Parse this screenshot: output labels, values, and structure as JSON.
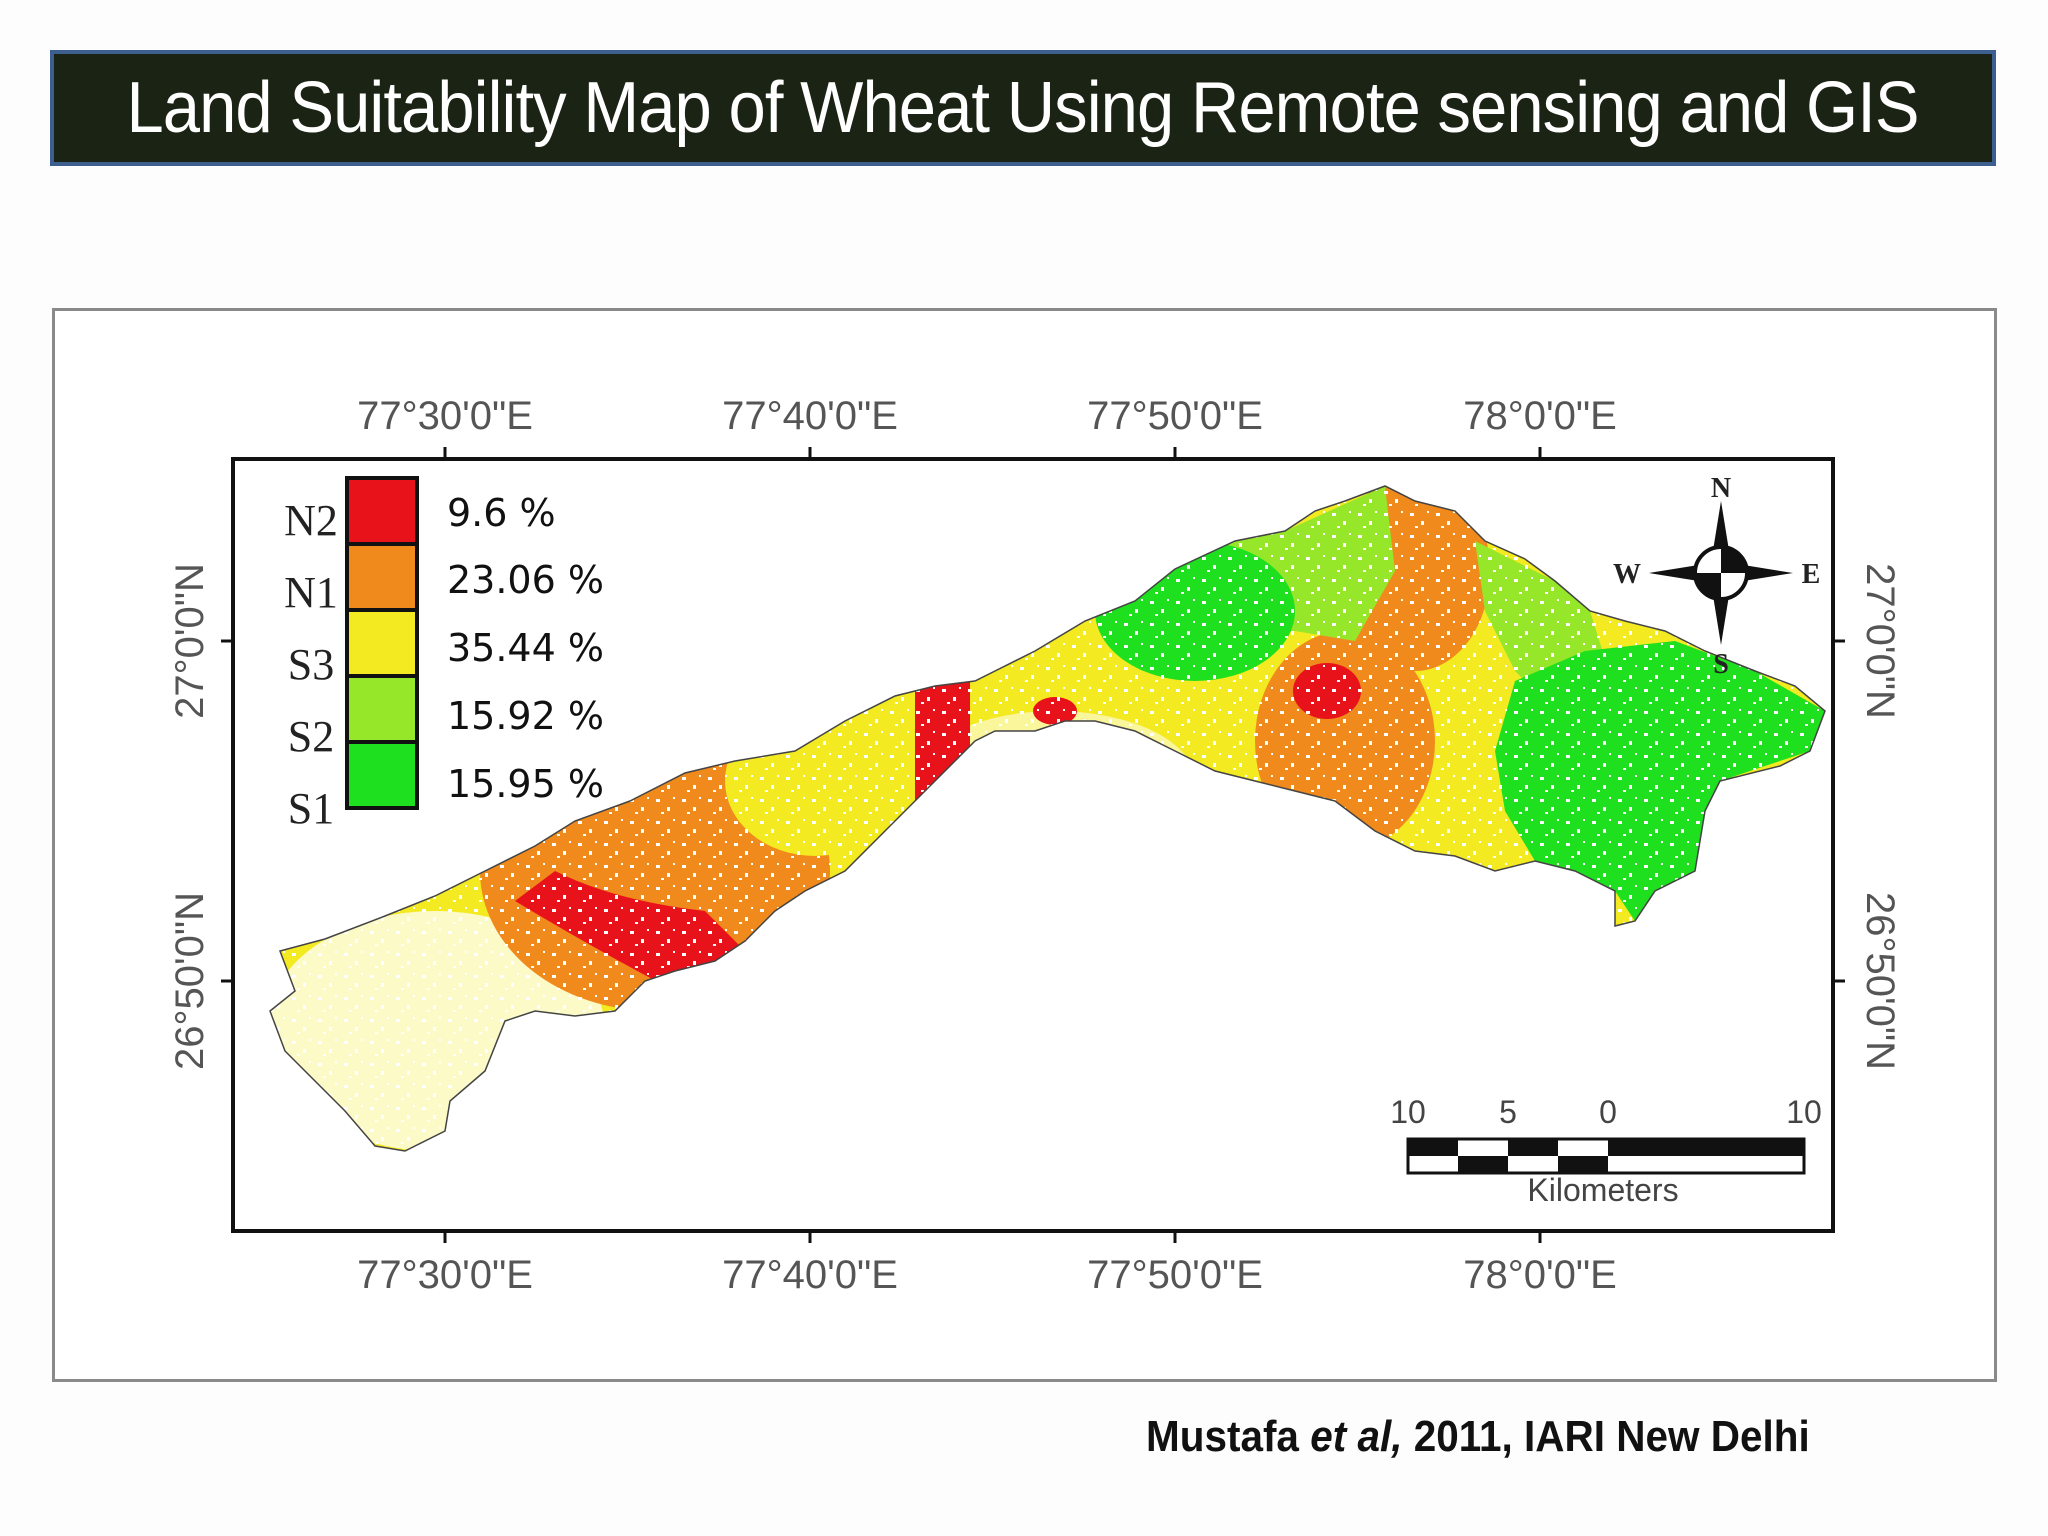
{
  "title": "Land Suitability Map of Wheat Using Remote sensing and GIS",
  "map": {
    "top_axis_labels": [
      "77°30'0\"E",
      "77°40'0\"E",
      "77°50'0\"E",
      "78°0'0\"E"
    ],
    "bottom_axis_labels": [
      "77°30'0\"E",
      "77°40'0\"E",
      "77°50'0\"E",
      "78°0'0\"E"
    ],
    "left_axis_labels": [
      "27°0'0\"N",
      "26°50'0\"N"
    ],
    "right_axis_labels": [
      "27°0'0\"N",
      "26°50'0\"N"
    ],
    "legend": [
      {
        "class": "N2",
        "percent": "9.6 %",
        "color": "#e8121a"
      },
      {
        "class": "N1",
        "percent": "23.06 %",
        "color": "#f08a1c"
      },
      {
        "class": "S3",
        "percent": "35.44 %",
        "color": "#f3ea22"
      },
      {
        "class": "S2",
        "percent": "15.92 %",
        "color": "#96e62a"
      },
      {
        "class": "S1",
        "percent": "15.95 %",
        "color": "#1ee01e"
      }
    ],
    "compass": {
      "north": "N",
      "south": "S",
      "east": "E",
      "west": "W"
    },
    "scale_bar": {
      "ticks": [
        "10",
        "5",
        "0",
        "10"
      ],
      "unit": "Kilometers"
    }
  },
  "citation": {
    "author": "Mustafa",
    "etal": "et al,",
    "rest": "2011, IARI New Delhi"
  }
}
